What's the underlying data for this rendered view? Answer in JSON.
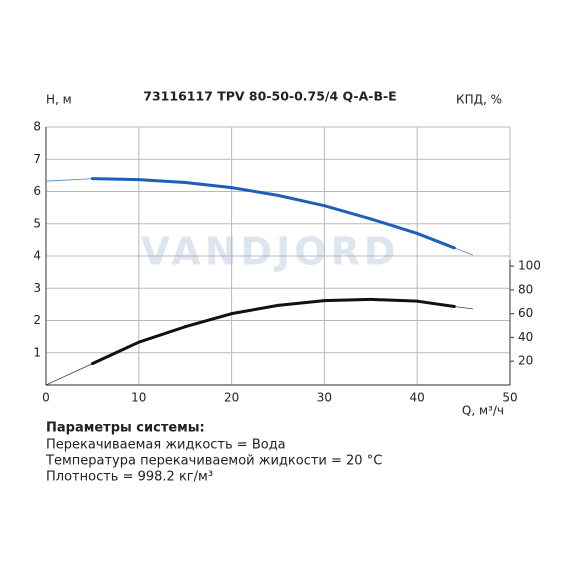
{
  "chart_data": {
    "type": "line",
    "title": "73116117 TPV 80-50-0.75/4 Q-A-B-E",
    "watermark": "VANDJORD",
    "y_label": "H, м",
    "y2_label": "КПД, %",
    "x_label": "Q, м³/ч",
    "x": [
      0,
      5,
      10,
      15,
      20,
      25,
      30,
      35,
      40,
      44,
      46
    ],
    "xlim": [
      0,
      50
    ],
    "xticks": [
      0,
      10,
      20,
      30,
      40,
      50
    ],
    "ylim": [
      0,
      8
    ],
    "yticks": [
      1,
      2,
      3,
      4,
      5,
      6,
      7,
      8
    ],
    "y2lim": [
      0,
      217
    ],
    "y2ticks": [
      20,
      40,
      60,
      80,
      100
    ],
    "grid": true,
    "operating_range": [
      5,
      44
    ],
    "series": [
      {
        "color": "#1f5fb8",
        "values": [
          6.32,
          6.4,
          6.37,
          6.28,
          6.12,
          5.88,
          5.56,
          5.15,
          4.7,
          4.25,
          4.03
        ]
      },
      {
        "color": "#111111",
        "axis": "y2",
        "values": [
          0,
          18,
          36,
          49,
          60,
          67,
          71,
          72,
          70.5,
          66,
          64
        ]
      }
    ]
  },
  "params": {
    "title": "Параметры системы:",
    "lines": [
      "Перекачиваемая жидкость = Вода",
      "Температура перекачиваемой жидкости = 20 °C",
      "Плотность = 998.2 кг/м³"
    ]
  }
}
